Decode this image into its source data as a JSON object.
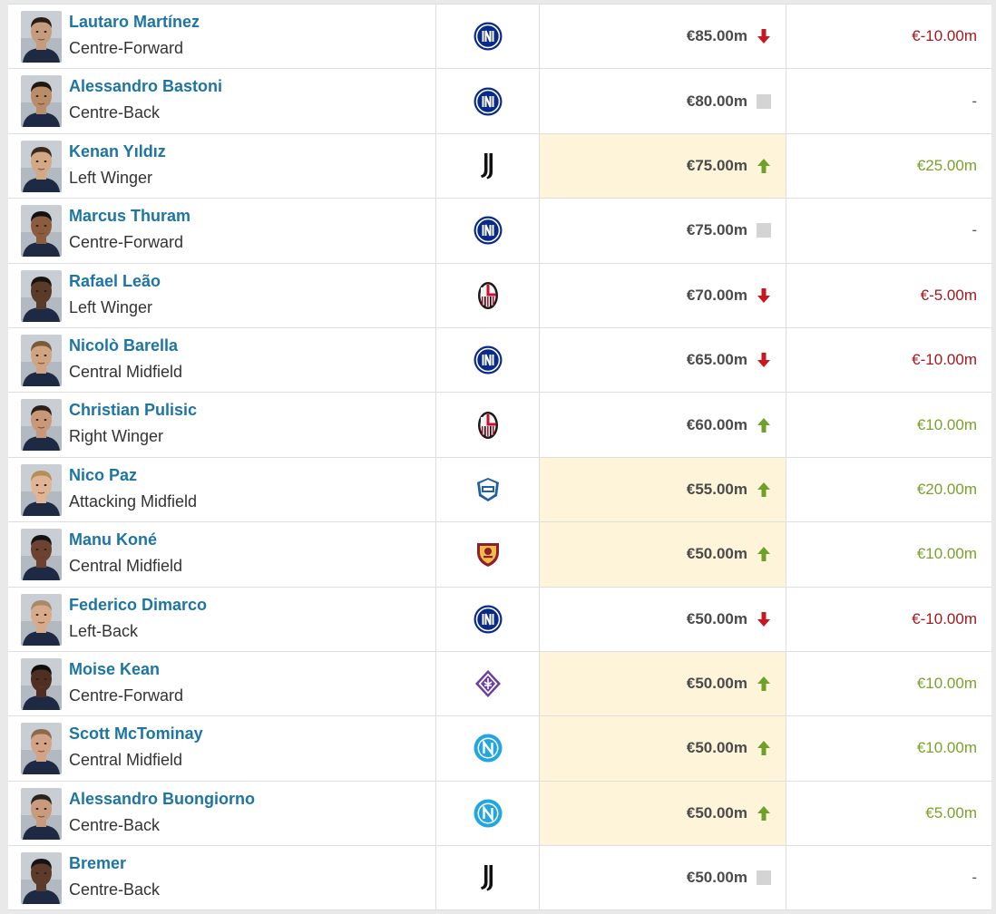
{
  "colors": {
    "player_link": "#1d75a3",
    "trend_down": "#c8171e",
    "trend_up": "#6ea02a",
    "trend_none": "#d4d4d4",
    "highlight_cell": "#fdf4d9"
  },
  "rows": [
    {
      "name": "Lautaro Martínez",
      "position": "Centre-Forward",
      "club_icon": "inter-crest-icon",
      "market_value": "€85.00m",
      "trend": "down",
      "highlight": false,
      "change": "€-10.00m"
    },
    {
      "name": "Alessandro Bastoni",
      "position": "Centre-Back",
      "club_icon": "inter-crest-icon",
      "market_value": "€80.00m",
      "trend": "none",
      "highlight": false,
      "change": "-"
    },
    {
      "name": "Kenan Yıldız",
      "position": "Left Winger",
      "club_icon": "juventus-crest-icon",
      "market_value": "€75.00m",
      "trend": "up",
      "highlight": true,
      "change": "€25.00m"
    },
    {
      "name": "Marcus Thuram",
      "position": "Centre-Forward",
      "club_icon": "inter-crest-icon",
      "market_value": "€75.00m",
      "trend": "none",
      "highlight": false,
      "change": "-"
    },
    {
      "name": "Rafael Leão",
      "position": "Left Winger",
      "club_icon": "milan-crest-icon",
      "market_value": "€70.00m",
      "trend": "down",
      "highlight": false,
      "change": "€-5.00m"
    },
    {
      "name": "Nicolò Barella",
      "position": "Central Midfield",
      "club_icon": "inter-crest-icon",
      "market_value": "€65.00m",
      "trend": "down",
      "highlight": false,
      "change": "€-10.00m"
    },
    {
      "name": "Christian Pulisic",
      "position": "Right Winger",
      "club_icon": "milan-crest-icon",
      "market_value": "€60.00m",
      "trend": "up",
      "highlight": false,
      "change": "€10.00m"
    },
    {
      "name": "Nico Paz",
      "position": "Attacking Midfield",
      "club_icon": "como-crest-icon",
      "market_value": "€55.00m",
      "trend": "up",
      "highlight": true,
      "change": "€20.00m"
    },
    {
      "name": "Manu Koné",
      "position": "Central Midfield",
      "club_icon": "roma-crest-icon",
      "market_value": "€50.00m",
      "trend": "up",
      "highlight": true,
      "change": "€10.00m"
    },
    {
      "name": "Federico Dimarco",
      "position": "Left-Back",
      "club_icon": "inter-crest-icon",
      "market_value": "€50.00m",
      "trend": "down",
      "highlight": false,
      "change": "€-10.00m"
    },
    {
      "name": "Moise Kean",
      "position": "Centre-Forward",
      "club_icon": "fiorentina-crest-icon",
      "market_value": "€50.00m",
      "trend": "up",
      "highlight": true,
      "change": "€10.00m"
    },
    {
      "name": "Scott McTominay",
      "position": "Central Midfield",
      "club_icon": "napoli-crest-icon",
      "market_value": "€50.00m",
      "trend": "up",
      "highlight": true,
      "change": "€10.00m"
    },
    {
      "name": "Alessandro Buongiorno",
      "position": "Centre-Back",
      "club_icon": "napoli-crest-icon",
      "market_value": "€50.00m",
      "trend": "up",
      "highlight": true,
      "change": "€5.00m"
    },
    {
      "name": "Bremer",
      "position": "Centre-Back",
      "club_icon": "juventus-crest-icon",
      "market_value": "€50.00m",
      "trend": "none",
      "highlight": false,
      "change": "-"
    }
  ]
}
